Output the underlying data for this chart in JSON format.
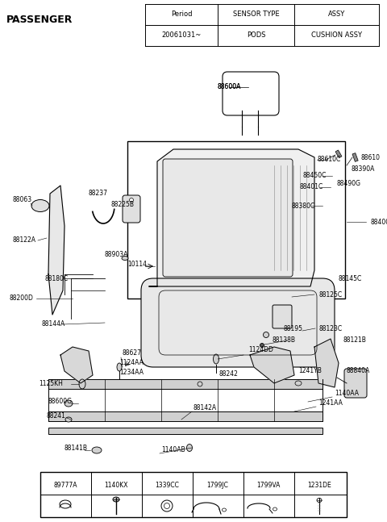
{
  "title": "PASSENGER",
  "bg_color": "#ffffff",
  "header_table": {
    "cols": [
      "Period",
      "SENSOR TYPE",
      "ASSY"
    ],
    "rows": [
      [
        "20061031~",
        "PODS",
        "CUSHION ASSY"
      ]
    ]
  },
  "bottom_table": {
    "codes": [
      "89777A",
      "1140KX",
      "1339CC",
      "1799JC",
      "1799VA",
      "1231DE"
    ]
  },
  "text_color": "#000000",
  "font_size": 5.5,
  "title_font_size": 9
}
